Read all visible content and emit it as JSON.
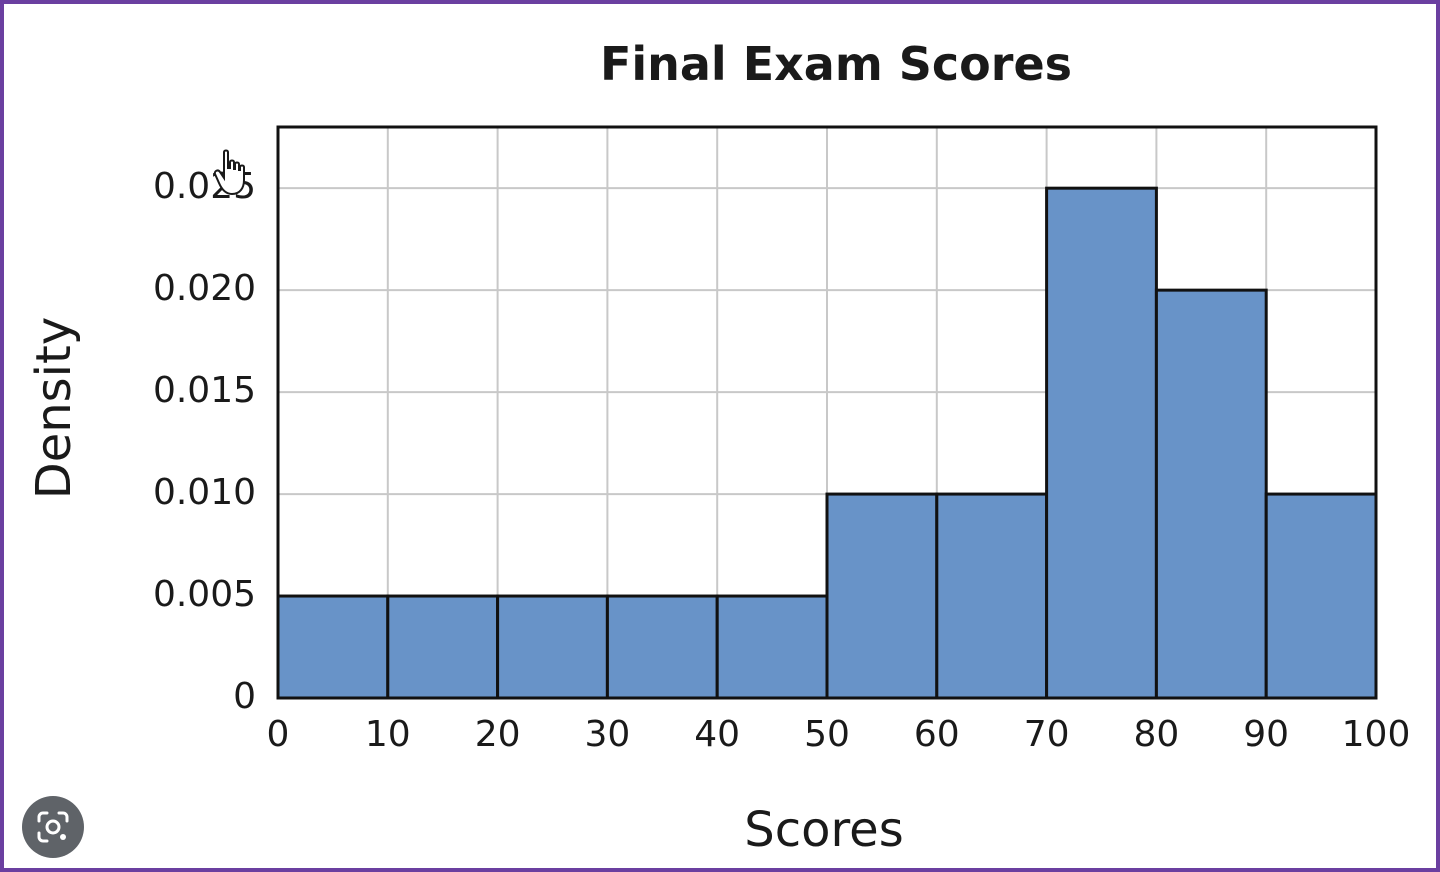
{
  "chart_data": {
    "type": "bar",
    "title": "Final Exam Scores",
    "xlabel": "Scores",
    "ylabel": "Density",
    "bin_edges": [
      0,
      10,
      20,
      30,
      40,
      50,
      60,
      70,
      80,
      90,
      100
    ],
    "values": [
      0.005,
      0.005,
      0.005,
      0.005,
      0.005,
      0.01,
      0.01,
      0.025,
      0.02,
      0.01
    ],
    "x_ticks": [
      "0",
      "10",
      "20",
      "30",
      "40",
      "50",
      "60",
      "70",
      "80",
      "90",
      "100"
    ],
    "y_ticks": [
      {
        "value": 0,
        "label": "0"
      },
      {
        "value": 0.005,
        "label": "0.005"
      },
      {
        "value": 0.01,
        "label": "0.010"
      },
      {
        "value": 0.015,
        "label": "0.015"
      },
      {
        "value": 0.02,
        "label": "0.020"
      },
      {
        "value": 0.025,
        "label": "0.025"
      }
    ],
    "xlim": [
      0,
      100
    ],
    "ylim": [
      0,
      0.028
    ],
    "grid": true,
    "colors": {
      "bar_fill": "#6893c8",
      "bar_stroke": "#111111",
      "grid": "#c8c8c8",
      "frame": "#6b3fa0"
    }
  },
  "overlay": {
    "lens_icon": "google-lens-icon",
    "cursor_icon": "hand-pointer-icon"
  }
}
